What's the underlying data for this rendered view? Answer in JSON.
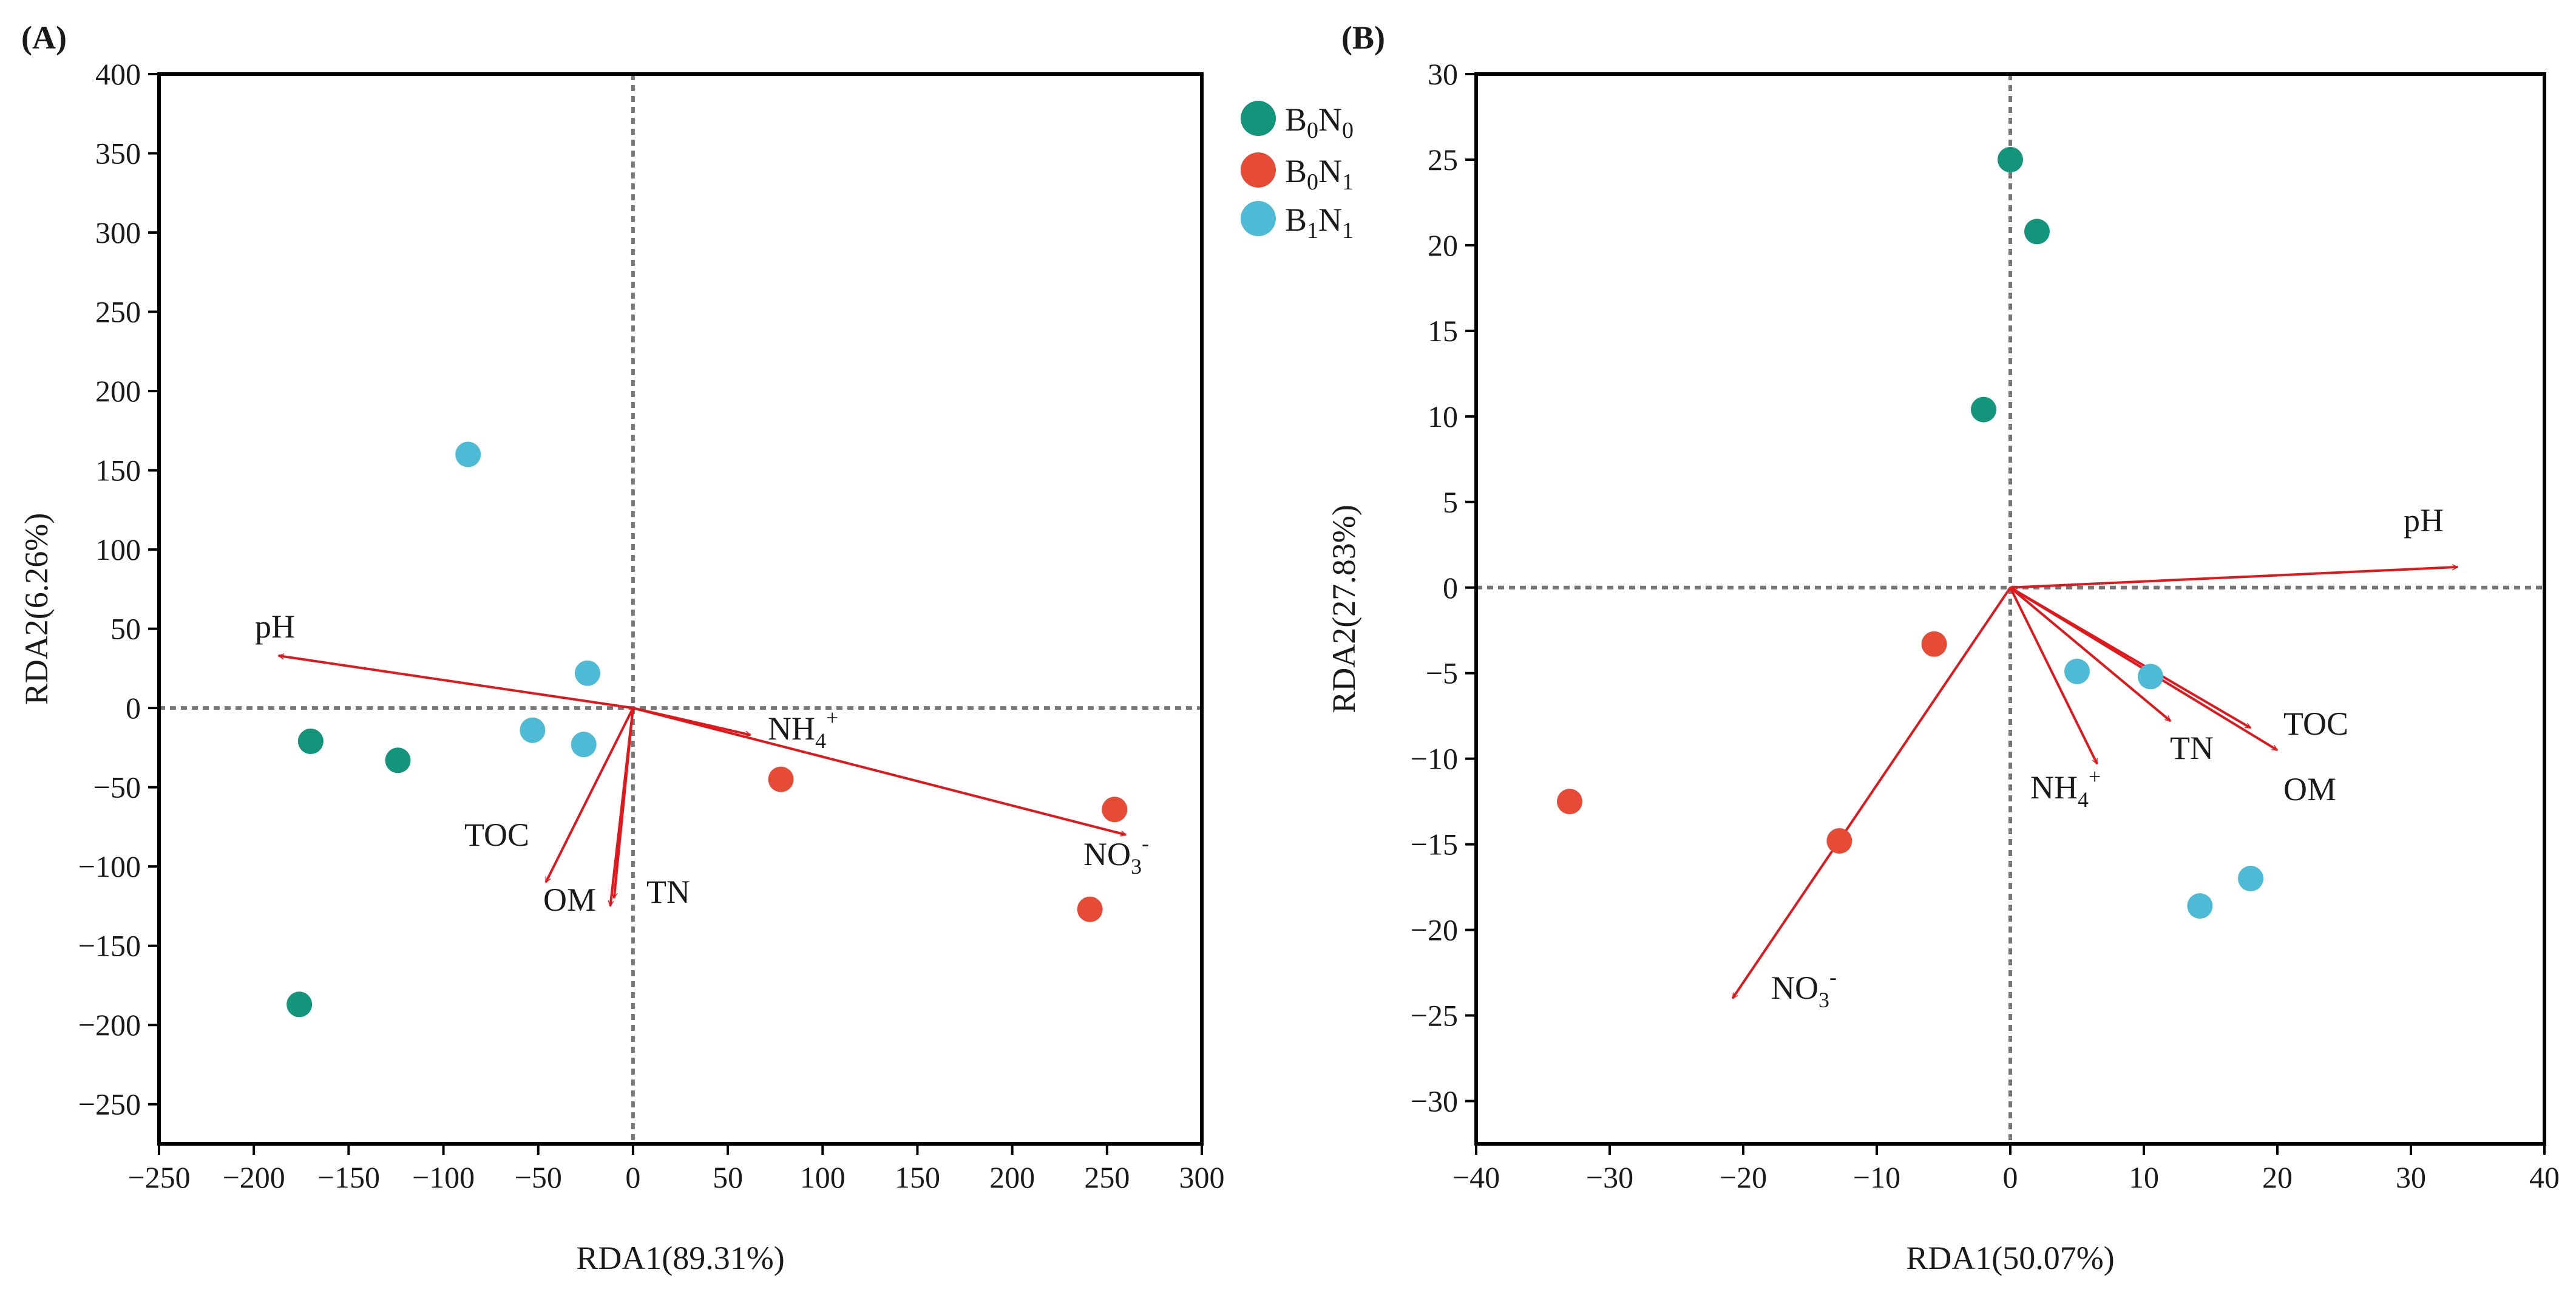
{
  "chart_data": [
    {
      "type": "scatter",
      "panel_label": "(A)",
      "xlabel": "RDA1(89.31%)",
      "ylabel": "RDA2(6.26%)",
      "xlim": [
        -250,
        300
      ],
      "ylim": [
        -275,
        400
      ],
      "xticks": [
        -250,
        -200,
        -150,
        -100,
        -50,
        0,
        50,
        100,
        150,
        200,
        250,
        300
      ],
      "yticks": [
        -250,
        -200,
        -150,
        -100,
        -50,
        0,
        50,
        100,
        150,
        200,
        250,
        300,
        350,
        400
      ],
      "tick_labels_x": [
        "−250",
        "−200",
        "−150",
        "−100",
        "−50",
        "0",
        "50",
        "100",
        "150",
        "200",
        "250",
        "300"
      ],
      "tick_labels_y": [
        "−250",
        "−200",
        "−150",
        "−100",
        "−50",
        "0",
        "50",
        "100",
        "150",
        "200",
        "250",
        "300",
        "350",
        "400"
      ],
      "zero_lines": true,
      "series": [
        {
          "name": "B0N0",
          "color": "#12957a",
          "points": [
            [
              -170,
              -21
            ],
            [
              -124,
              -33
            ],
            [
              -176,
              -187
            ]
          ]
        },
        {
          "name": "B0N1",
          "color": "#e64b35",
          "points": [
            [
              78,
              -45
            ],
            [
              254,
              -64
            ],
            [
              241,
              -127
            ]
          ]
        },
        {
          "name": "B1N1",
          "color": "#4dbbd5",
          "points": [
            [
              -87,
              160
            ],
            [
              -24,
              22
            ],
            [
              -53,
              -14
            ],
            [
              -26,
              -23
            ]
          ]
        }
      ],
      "arrows": [
        {
          "label": "pH",
          "x": -187,
          "y": 33
        },
        {
          "label": "NH4+",
          "x": 62,
          "y": -17
        },
        {
          "label": "NO3-",
          "x": 260,
          "y": -80
        },
        {
          "label": "TOC",
          "x": -46,
          "y": -110
        },
        {
          "label": "OM",
          "x": -12,
          "y": -125
        },
        {
          "label": "TN",
          "x": -10,
          "y": -120
        }
      ],
      "arrow_color": "#e0181b"
    },
    {
      "type": "scatter",
      "panel_label": "(B)",
      "xlabel": "RDA1(50.07%)",
      "ylabel": "RDA2(27.83%)",
      "xlim": [
        -40,
        40
      ],
      "ylim": [
        -32.5,
        30
      ],
      "xticks": [
        -40,
        -30,
        -20,
        -10,
        0,
        10,
        20,
        30,
        40
      ],
      "yticks": [
        -30,
        -25,
        -20,
        -15,
        -10,
        -5,
        0,
        5,
        10,
        15,
        20,
        25,
        30
      ],
      "tick_labels_x": [
        "−40",
        "−30",
        "−20",
        "−10",
        "0",
        "10",
        "20",
        "30",
        "40"
      ],
      "tick_labels_y": [
        "−30",
        "−25",
        "−20",
        "−15",
        "−10",
        "−5",
        "0",
        "5",
        "10",
        "15",
        "20",
        "25",
        "30"
      ],
      "zero_lines": true,
      "series": [
        {
          "name": "B0N0",
          "color": "#12957a",
          "points": [
            [
              0,
              25
            ],
            [
              2,
              20.8
            ],
            [
              -2,
              10.4
            ]
          ]
        },
        {
          "name": "B0N1",
          "color": "#e64b35",
          "points": [
            [
              -5.7,
              -3.3
            ],
            [
              -33,
              -12.5
            ],
            [
              -12.8,
              -14.8
            ]
          ]
        },
        {
          "name": "B1N1",
          "color": "#4dbbd5",
          "points": [
            [
              5,
              -4.9
            ],
            [
              10.5,
              -5.2
            ],
            [
              18,
              -17
            ],
            [
              14.2,
              -18.6
            ]
          ]
        }
      ],
      "arrows": [
        {
          "label": "pH",
          "x": 33.5,
          "y": 1.2
        },
        {
          "label": "NH4+",
          "x": 6.5,
          "y": -10.3
        },
        {
          "label": "TN",
          "x": 12,
          "y": -7.8
        },
        {
          "label": "TOC",
          "x": 20,
          "y": -9.5
        },
        {
          "label": "OM",
          "x": 18,
          "y": -8.2
        },
        {
          "label": "NO3-",
          "x": -20.8,
          "y": -24
        }
      ],
      "arrow_color": "#e0181b"
    }
  ],
  "legend": [
    {
      "base1": "B",
      "sub1": "0",
      "base2": "N",
      "sub2": "0",
      "color": "#12957a"
    },
    {
      "base1": "B",
      "sub1": "0",
      "base2": "N",
      "sub2": "1",
      "color": "#e64b35"
    },
    {
      "base1": "B",
      "sub1": "1",
      "base2": "N",
      "sub2": "1",
      "color": "#4dbbd5"
    }
  ],
  "labels": {
    "ph": "pH",
    "nh4_base": "NH",
    "nh4_sub": "4",
    "nh4_sup": "+",
    "no3_base": "NO",
    "no3_sub": "3",
    "no3_sup": "-",
    "toc": "TOC",
    "om": "OM",
    "tn": "TN"
  }
}
